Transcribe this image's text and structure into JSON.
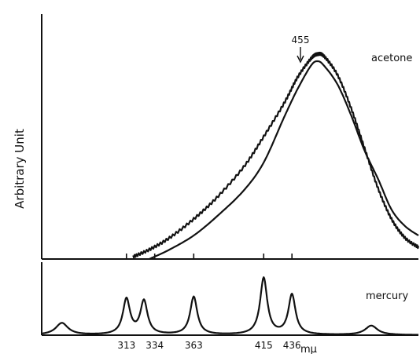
{
  "chart_data": [
    {
      "type": "line",
      "panel": "upper",
      "title": "",
      "xlabel": "",
      "ylabel": "Arbitrary Unit",
      "xlim": [
        250,
        530
      ],
      "ylim": [
        0,
        1.0
      ],
      "annotation": {
        "text": "455",
        "x": 455,
        "y": 0.9
      },
      "series": [
        {
          "name": "acetone",
          "wavy": true,
          "x": [
            318,
            330,
            345,
            363,
            380,
            400,
            415,
            430,
            440,
            450,
            455,
            460,
            470,
            480,
            490,
            500,
            510,
            520,
            530
          ],
          "y": [
            0.01,
            0.04,
            0.09,
            0.17,
            0.26,
            0.39,
            0.52,
            0.66,
            0.77,
            0.85,
            0.87,
            0.86,
            0.78,
            0.64,
            0.47,
            0.3,
            0.17,
            0.09,
            0.05
          ]
        },
        {
          "name": "",
          "wavy": false,
          "x": [
            330,
            345,
            363,
            380,
            400,
            415,
            430,
            440,
            450,
            455,
            460,
            470,
            480,
            490,
            500,
            510,
            520,
            530
          ],
          "y": [
            0.0,
            0.04,
            0.1,
            0.18,
            0.29,
            0.41,
            0.6,
            0.72,
            0.82,
            0.84,
            0.82,
            0.74,
            0.61,
            0.46,
            0.34,
            0.21,
            0.14,
            0.1
          ]
        }
      ]
    },
    {
      "type": "line",
      "panel": "lower",
      "title": "",
      "xlabel": "mμ",
      "ylabel": "",
      "xlim": [
        250,
        530
      ],
      "ylim": [
        0,
        1.0
      ],
      "xticks": [
        313,
        334,
        363,
        415,
        436
      ],
      "xticklabels": [
        "313",
        "334",
        "363",
        "415",
        "436"
      ],
      "series": [
        {
          "name": "mercury",
          "peaks": [
            {
              "x": 265,
              "height": 0.18
            },
            {
              "x": 313,
              "height": 0.53
            },
            {
              "x": 326,
              "height": 0.5
            },
            {
              "x": 363,
              "height": 0.57
            },
            {
              "x": 415,
              "height": 0.85
            },
            {
              "x": 436,
              "height": 0.6
            },
            {
              "x": 495,
              "height": 0.14
            }
          ]
        }
      ]
    }
  ]
}
